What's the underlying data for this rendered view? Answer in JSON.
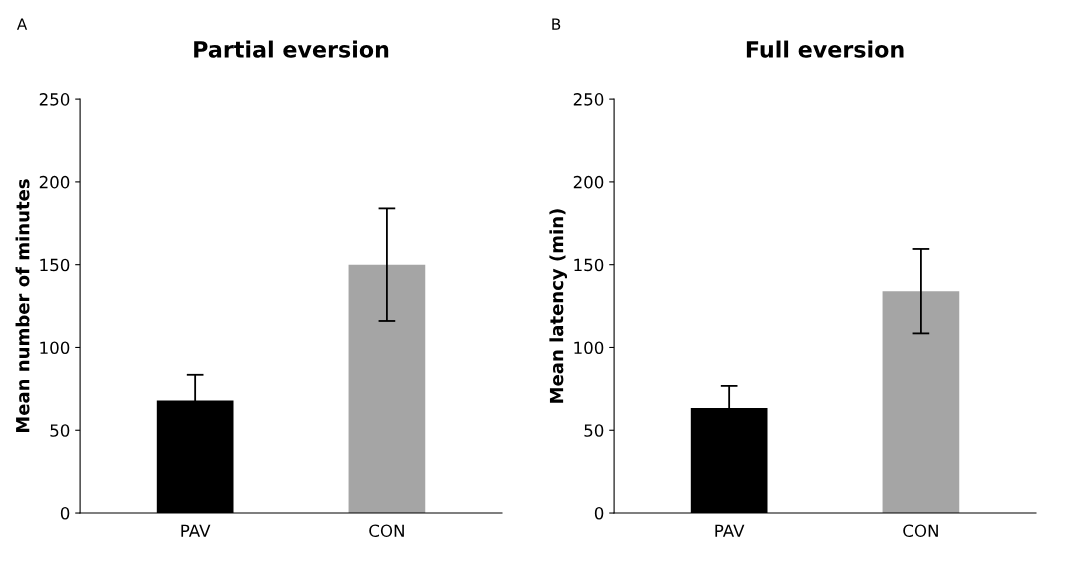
{
  "chart_data": [
    {
      "type": "bar",
      "title": "Partial eversion",
      "ylabel": "Mean number of minutes",
      "categories": [
        "PAV",
        "CON"
      ],
      "values": [
        68,
        150
      ],
      "colors": [
        "#000000",
        "#a5a5a5"
      ],
      "errors": [
        15.5,
        34
      ],
      "ylim": [
        0,
        250
      ],
      "yticks": [
        0,
        50,
        100,
        150,
        200,
        250
      ],
      "annotations": [
        "A"
      ]
    },
    {
      "type": "bar",
      "title": "Full eversion",
      "ylabel": "Mean latency (min)",
      "categories": [
        "PAV",
        "CON"
      ],
      "values": [
        63.4,
        134
      ],
      "colors": [
        "#000000",
        "#a5a5a5"
      ],
      "errors": [
        13.4,
        25.5
      ],
      "ylim": [
        0,
        250
      ],
      "yticks": [
        0,
        50,
        100,
        150,
        200,
        250
      ],
      "annotations": [
        "B"
      ]
    }
  ]
}
